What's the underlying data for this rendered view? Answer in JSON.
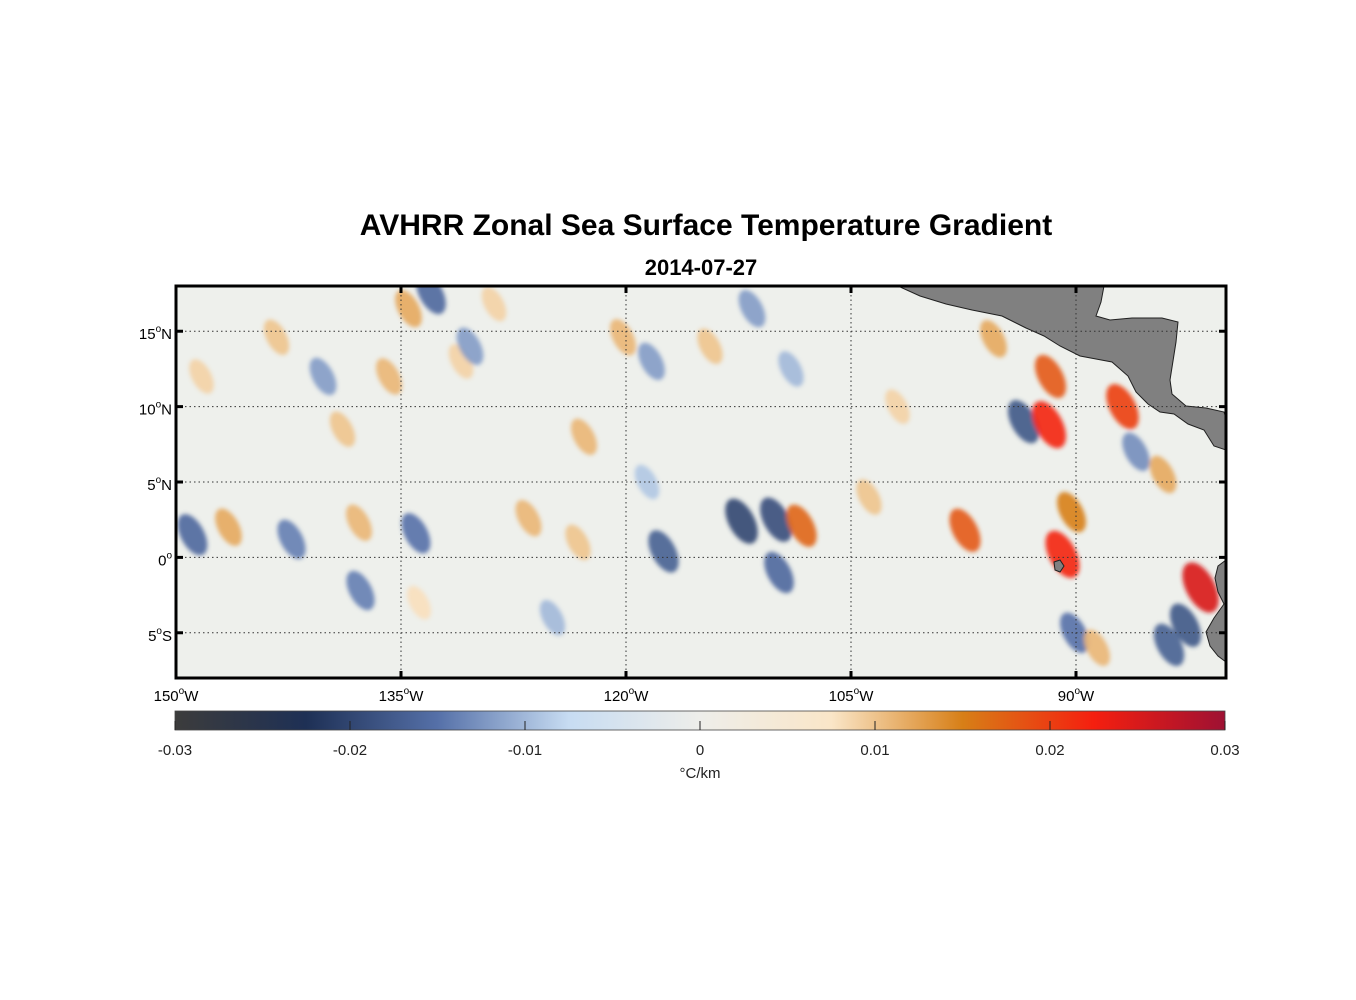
{
  "chart_data": {
    "type": "heatmap",
    "title": "AVHRR Zonal Sea Surface Temperature Gradient",
    "subtitle": "2014-07-27",
    "lon_range": [
      -150,
      -80
    ],
    "lat_range": [
      -8,
      18
    ],
    "lon_ticks": [
      {
        "value": -150,
        "deg": "150",
        "hemi": "W"
      },
      {
        "value": -135,
        "deg": "135",
        "hemi": "W"
      },
      {
        "value": -120,
        "deg": "120",
        "hemi": "W"
      },
      {
        "value": -105,
        "deg": "105",
        "hemi": "W"
      },
      {
        "value": -90,
        "deg": "90",
        "hemi": "W"
      }
    ],
    "lat_ticks": [
      {
        "value": 15,
        "deg": "15",
        "hemi": "N"
      },
      {
        "value": 10,
        "deg": "10",
        "hemi": "N"
      },
      {
        "value": 5,
        "deg": "5",
        "hemi": "N"
      },
      {
        "value": 0,
        "deg": "0",
        "hemi": ""
      },
      {
        "value": -5,
        "deg": "5",
        "hemi": "S"
      }
    ],
    "grid": true,
    "colorbar": {
      "min": -0.03,
      "max": 0.03,
      "ticks": [
        "-0.03",
        "-0.02",
        "-0.01",
        "0",
        "0.01",
        "0.02",
        "0.03"
      ],
      "tick_values": [
        -0.03,
        -0.02,
        -0.01,
        0,
        0.01,
        0.02,
        0.03
      ],
      "label": "°C/km",
      "orientation": "horizontal",
      "placement": "below",
      "colors": [
        "#3c3c3c",
        "#1e3055",
        "#5570a8",
        "#c7dcf2",
        "#eeeeea",
        "#fae6c8",
        "#d77f17",
        "#f51f0f",
        "#9e1133"
      ]
    },
    "land_color": "#808080",
    "field": [
      {
        "lon": -146.5,
        "lat": 2.0,
        "value": 0.012
      },
      {
        "lon": -148.9,
        "lat": 1.5,
        "value": -0.016
      },
      {
        "lon": -142.3,
        "lat": 1.2,
        "value": -0.014
      },
      {
        "lon": -137.8,
        "lat": 2.3,
        "value": 0.011
      },
      {
        "lon": -134.0,
        "lat": 1.6,
        "value": -0.015
      },
      {
        "lon": -126.5,
        "lat": 2.6,
        "value": 0.011
      },
      {
        "lon": -123.2,
        "lat": 1.0,
        "value": 0.01
      },
      {
        "lon": -117.5,
        "lat": 0.4,
        "value": -0.017
      },
      {
        "lon": -112.3,
        "lat": 2.4,
        "value": -0.02
      },
      {
        "lon": -110.0,
        "lat": 2.5,
        "value": -0.019
      },
      {
        "lon": -108.3,
        "lat": 2.1,
        "value": 0.017
      },
      {
        "lon": -109.8,
        "lat": -1.0,
        "value": -0.016
      },
      {
        "lon": -103.8,
        "lat": 4.0,
        "value": 0.01
      },
      {
        "lon": -97.4,
        "lat": 1.8,
        "value": 0.018
      },
      {
        "lon": -93.5,
        "lat": 9.0,
        "value": -0.018
      },
      {
        "lon": -91.8,
        "lat": 8.8,
        "value": 0.022
      },
      {
        "lon": -91.7,
        "lat": 12.0,
        "value": 0.018
      },
      {
        "lon": -90.9,
        "lat": 0.2,
        "value": 0.022
      },
      {
        "lon": -90.3,
        "lat": 3.0,
        "value": 0.015
      },
      {
        "lon": -86.9,
        "lat": 10.0,
        "value": 0.02
      },
      {
        "lon": -81.7,
        "lat": -2.0,
        "value": 0.025
      },
      {
        "lon": -82.7,
        "lat": -4.5,
        "value": -0.018
      },
      {
        "lon": -83.8,
        "lat": -5.8,
        "value": -0.017
      },
      {
        "lon": -90.1,
        "lat": -5.0,
        "value": -0.015
      },
      {
        "lon": -88.6,
        "lat": -6.0,
        "value": 0.011
      },
      {
        "lon": -135.8,
        "lat": 12.0,
        "value": 0.011
      },
      {
        "lon": -131.0,
        "lat": 13.0,
        "value": 0.009
      },
      {
        "lon": -134.5,
        "lat": 16.5,
        "value": 0.012
      },
      {
        "lon": -130.4,
        "lat": 14.0,
        "value": -0.012
      },
      {
        "lon": -140.2,
        "lat": 12.0,
        "value": -0.012
      },
      {
        "lon": -138.9,
        "lat": 8.5,
        "value": 0.01
      },
      {
        "lon": -133.0,
        "lat": 17.5,
        "value": -0.016
      },
      {
        "lon": -122.8,
        "lat": 8.0,
        "value": 0.011
      },
      {
        "lon": -120.2,
        "lat": 14.6,
        "value": 0.011
      },
      {
        "lon": -118.3,
        "lat": 13.0,
        "value": -0.012
      },
      {
        "lon": -114.4,
        "lat": 14.0,
        "value": 0.01
      },
      {
        "lon": -111.6,
        "lat": 16.5,
        "value": -0.012
      },
      {
        "lon": -109.0,
        "lat": 12.5,
        "value": -0.01
      },
      {
        "lon": -143.3,
        "lat": 14.6,
        "value": 0.01
      },
      {
        "lon": -148.3,
        "lat": 12.0,
        "value": 0.009
      },
      {
        "lon": -137.7,
        "lat": -2.2,
        "value": -0.014
      },
      {
        "lon": -133.8,
        "lat": -3.0,
        "value": 0.008
      },
      {
        "lon": -124.9,
        "lat": -4.0,
        "value": -0.01
      },
      {
        "lon": -118.6,
        "lat": 5.0,
        "value": -0.009
      },
      {
        "lon": -128.8,
        "lat": 16.8,
        "value": 0.009
      },
      {
        "lon": -101.9,
        "lat": 10.0,
        "value": 0.009
      },
      {
        "lon": -95.5,
        "lat": 14.5,
        "value": 0.012
      },
      {
        "lon": -86.0,
        "lat": 7.0,
        "value": -0.013
      },
      {
        "lon": -84.2,
        "lat": 5.5,
        "value": 0.012
      }
    ]
  }
}
